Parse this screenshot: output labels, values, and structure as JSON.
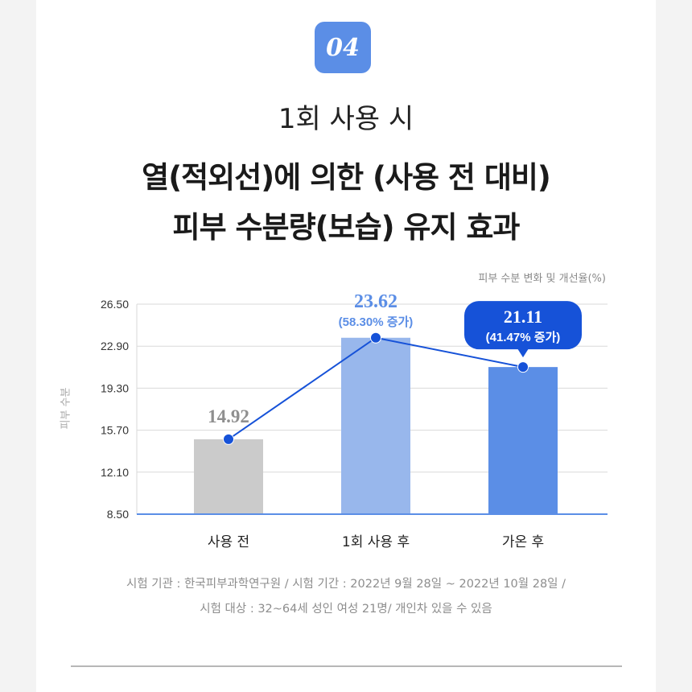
{
  "badge": "04",
  "subtitle": "1회 사용 시",
  "title_line1": "열(적외선)에 의한 (사용 전 대비)",
  "title_line2": "피부 수분량(보습) 유지 효과",
  "legend_note": "피부 수분 변화 및 개선율(%)",
  "colors": {
    "badge": "#5b8ee6",
    "bar_before": "#cbcbcb",
    "bar_1use": "#98b7ec",
    "bar_warm": "#5b8ee6",
    "line": "#1652d8",
    "bubble": "#1652d8",
    "axis": "#5b8ee6"
  },
  "chart_data": {
    "type": "bar",
    "categories": [
      "사용 전",
      "1회 사용 후",
      "가온 후"
    ],
    "values": [
      14.92,
      23.62,
      21.11
    ],
    "value_labels": [
      "14.92",
      "23.62",
      "21.11"
    ],
    "increase_labels": [
      "",
      "(58.30% 증가)",
      "(41.47% 증가)"
    ],
    "ylabel": "피부 수분",
    "yticks": [
      "26.50",
      "22.90",
      "19.30",
      "15.70",
      "12.10",
      "8.50"
    ],
    "ylim": [
      8.5,
      26.5
    ],
    "grid": true,
    "overlay_line": true
  },
  "footnote_line1": "시험 기관 : 한국피부과학연구원 / 시험 기간 : 2022년 9월 28일 ~ 2022년 10월 28일 /",
  "footnote_line2": "시험 대상 : 32~64세 성인 여성 21명/ 개인차 있을 수 있음"
}
